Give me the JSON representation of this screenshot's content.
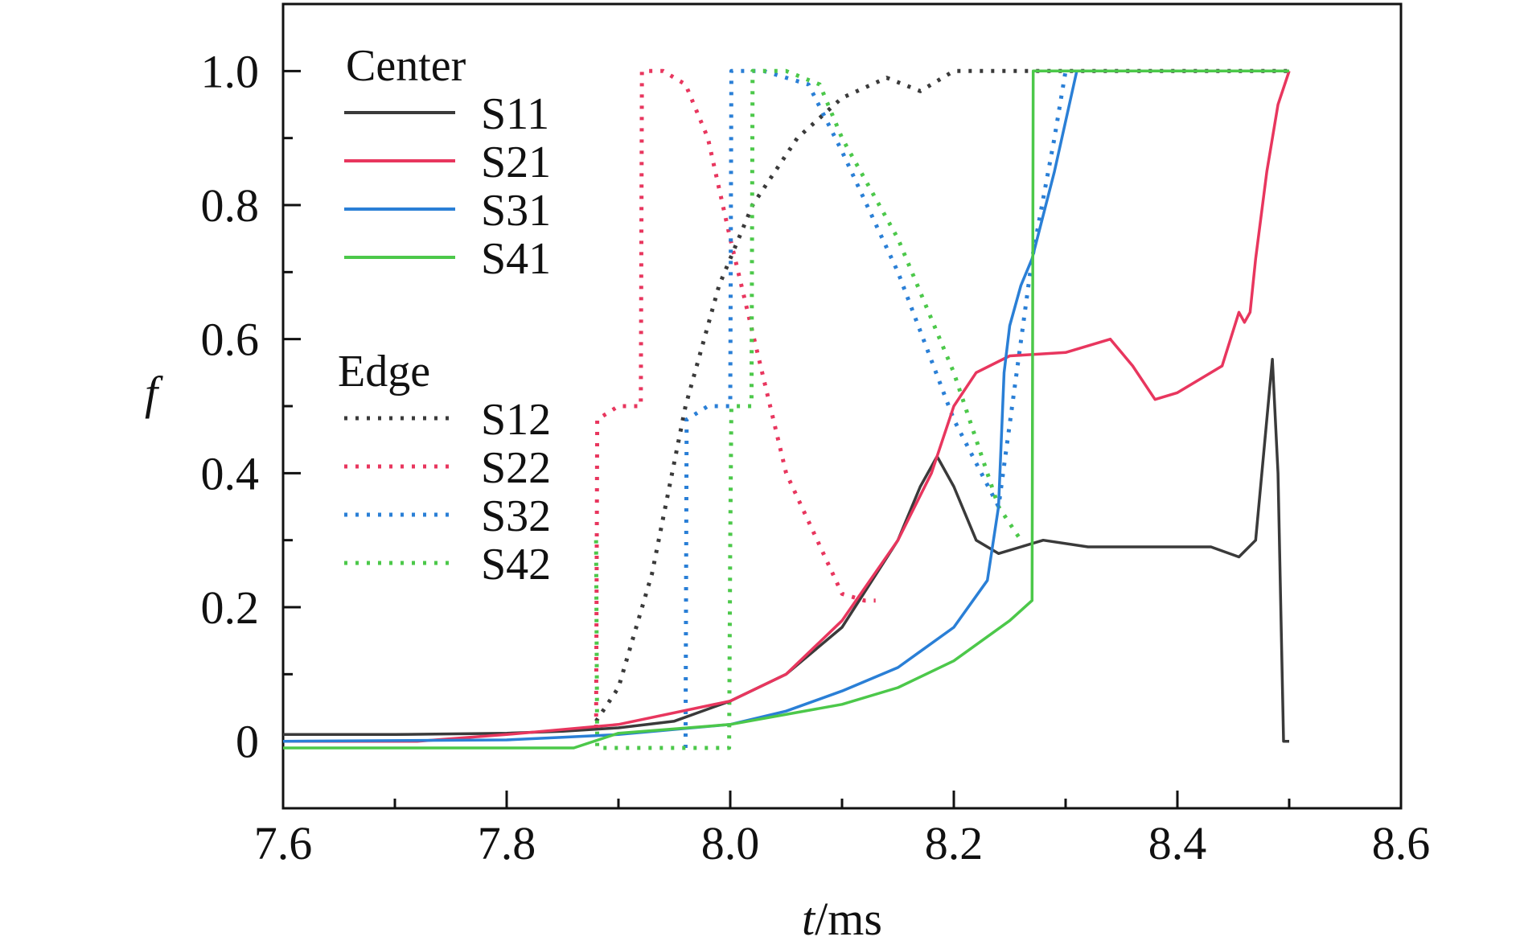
{
  "chart_data": {
    "type": "line",
    "title": "",
    "xlabel": {
      "var": "t",
      "unit": "/ms"
    },
    "ylabel": "f",
    "xlim": [
      7.6,
      8.6
    ],
    "ylim": [
      -0.1,
      1.1
    ],
    "xticks": [
      {
        "v": 7.6,
        "label": "7.6"
      },
      {
        "v": 7.8,
        "label": "7.8"
      },
      {
        "v": 8.0,
        "label": "8.0"
      },
      {
        "v": 8.2,
        "label": "8.2"
      },
      {
        "v": 8.4,
        "label": "8.4"
      },
      {
        "v": 8.6,
        "label": "8.6"
      }
    ],
    "yticks": [
      {
        "v": 0.0,
        "label": "0"
      },
      {
        "v": 0.2,
        "label": "0.2"
      },
      {
        "v": 0.4,
        "label": "0.4"
      },
      {
        "v": 0.6,
        "label": "0.6"
      },
      {
        "v": 0.8,
        "label": "0.8"
      },
      {
        "v": 1.0,
        "label": "1.0"
      }
    ],
    "grid": false,
    "legend": {
      "placement": "top-left",
      "groups": [
        {
          "title": "Center",
          "entries": [
            "S11",
            "S21",
            "S31",
            "S41"
          ]
        },
        {
          "title": "Edge",
          "entries": [
            "S12",
            "S22",
            "S32",
            "S42"
          ]
        }
      ]
    },
    "series": [
      {
        "name": "S11",
        "color": "#3a3a3a",
        "style": "solid",
        "x": [
          7.6,
          7.7,
          7.8,
          7.85,
          7.9,
          7.95,
          8.0,
          8.05,
          8.1,
          8.15,
          8.17,
          8.185,
          8.2,
          8.22,
          8.24,
          8.26,
          8.28,
          8.32,
          8.38,
          8.43,
          8.455,
          8.47,
          8.485,
          8.49,
          8.495,
          8.5
        ],
        "y": [
          0.01,
          0.01,
          0.012,
          0.015,
          0.02,
          0.03,
          0.06,
          0.1,
          0.17,
          0.3,
          0.38,
          0.425,
          0.38,
          0.3,
          0.28,
          0.29,
          0.3,
          0.29,
          0.29,
          0.29,
          0.275,
          0.3,
          0.57,
          0.4,
          0.0,
          0.0
        ]
      },
      {
        "name": "S21",
        "color": "#e8365e",
        "style": "solid",
        "x": [
          7.6,
          7.72,
          7.8,
          7.9,
          8.0,
          8.05,
          8.1,
          8.15,
          8.18,
          8.2,
          8.22,
          8.25,
          8.3,
          8.34,
          8.36,
          8.38,
          8.4,
          8.44,
          8.455,
          8.46,
          8.465,
          8.47,
          8.48,
          8.49,
          8.5
        ],
        "y": [
          0.0,
          0.0,
          0.01,
          0.025,
          0.06,
          0.1,
          0.18,
          0.3,
          0.4,
          0.5,
          0.55,
          0.575,
          0.58,
          0.6,
          0.56,
          0.51,
          0.52,
          0.56,
          0.64,
          0.625,
          0.64,
          0.72,
          0.85,
          0.95,
          1.0
        ]
      },
      {
        "name": "S31",
        "color": "#2a7fd6",
        "style": "solid",
        "x": [
          7.6,
          7.8,
          7.85,
          7.9,
          8.0,
          8.05,
          8.1,
          8.15,
          8.2,
          8.23,
          8.24,
          8.245,
          8.25,
          8.26,
          8.27,
          8.29,
          8.31,
          8.5
        ],
        "y": [
          0.0,
          0.002,
          0.006,
          0.01,
          0.025,
          0.045,
          0.075,
          0.11,
          0.17,
          0.24,
          0.35,
          0.55,
          0.62,
          0.68,
          0.72,
          0.85,
          1.0,
          1.0
        ]
      },
      {
        "name": "S41",
        "color": "#4cc84a",
        "style": "solid",
        "x": [
          7.6,
          7.86,
          7.9,
          8.0,
          8.1,
          8.15,
          8.2,
          8.25,
          8.27,
          8.271,
          8.5
        ],
        "y": [
          -0.01,
          -0.01,
          0.012,
          0.025,
          0.055,
          0.08,
          0.12,
          0.18,
          0.21,
          1.0,
          1.0
        ]
      },
      {
        "name": "S12",
        "color": "#3a3a3a",
        "style": "dotted",
        "x": [
          7.88,
          7.9,
          7.93,
          7.96,
          7.99,
          8.02,
          8.06,
          8.1,
          8.14,
          8.17,
          8.2,
          8.5
        ],
        "y": [
          0.03,
          0.08,
          0.25,
          0.5,
          0.68,
          0.8,
          0.9,
          0.96,
          0.99,
          0.97,
          1.0,
          1.0
        ]
      },
      {
        "name": "S22",
        "color": "#e8365e",
        "style": "dotted",
        "x": [
          7.88,
          7.881,
          7.9,
          7.92,
          7.921,
          7.94,
          7.96,
          7.98,
          8.0,
          8.05,
          8.1,
          8.12,
          8.13
        ],
        "y": [
          0.02,
          0.48,
          0.5,
          0.5,
          1.0,
          1.0,
          0.98,
          0.9,
          0.75,
          0.4,
          0.22,
          0.21,
          0.21
        ]
      },
      {
        "name": "S32",
        "color": "#2a7fd6",
        "style": "dotted",
        "x": [
          7.96,
          7.961,
          7.98,
          8.0,
          8.001,
          8.03,
          8.07,
          8.1,
          8.15,
          8.2,
          8.24,
          8.27,
          8.29,
          8.3
        ],
        "y": [
          -0.01,
          0.48,
          0.5,
          0.5,
          1.0,
          1.0,
          0.98,
          0.88,
          0.7,
          0.48,
          0.35,
          0.72,
          0.9,
          1.0
        ]
      },
      {
        "name": "S42",
        "color": "#4cc84a",
        "style": "dotted",
        "x": [
          7.88,
          7.881,
          7.999,
          8.0,
          8.001,
          8.019,
          8.02,
          8.05,
          8.08,
          8.1,
          8.15,
          8.2,
          8.24,
          8.26
        ],
        "y": [
          0.3,
          -0.01,
          -0.01,
          0.3,
          0.5,
          0.5,
          1.0,
          1.0,
          0.98,
          0.9,
          0.75,
          0.55,
          0.35,
          0.3
        ]
      }
    ]
  }
}
